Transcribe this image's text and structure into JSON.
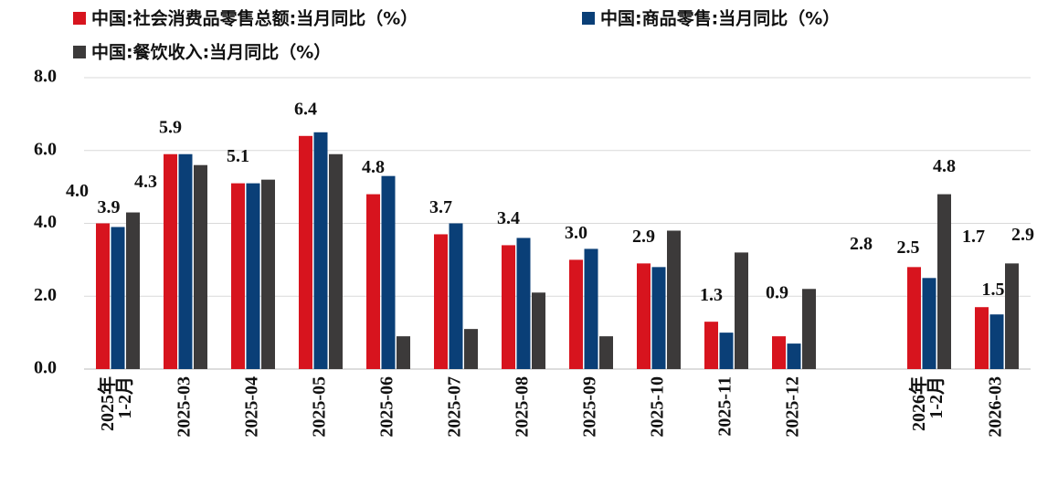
{
  "chart_data": {
    "type": "bar",
    "categories": [
      [
        "2025年",
        "1-2月"
      ],
      "2025-03",
      "2025-04",
      "2025-05",
      "2025-06",
      "2025-07",
      "2025-08",
      "2025-09",
      "2025-10",
      "2025-11",
      "2025-12",
      null,
      [
        "2026年",
        "1-2月"
      ],
      "2026-03"
    ],
    "series": [
      {
        "name": "中国:社会消费品零售总额:当月同比（%）",
        "color": "#d7141e",
        "values": [
          4.0,
          5.9,
          5.1,
          6.4,
          4.8,
          3.7,
          3.4,
          3.0,
          2.9,
          1.3,
          0.9,
          null,
          2.8,
          1.7
        ],
        "value_labels": [
          "4.0",
          "5.9",
          "5.1",
          "6.4",
          "4.8",
          "3.7",
          "3.4",
          "3.0",
          "2.9",
          "1.3",
          "0.9",
          null,
          "2.8",
          "1.7"
        ]
      },
      {
        "name": "中国:商品零售:当月同比（%）",
        "color": "#0a3f77",
        "values": [
          3.9,
          5.9,
          5.1,
          6.5,
          5.3,
          4.0,
          3.6,
          3.3,
          2.8,
          1.0,
          0.7,
          null,
          2.5,
          1.5
        ],
        "value_labels": [
          "3.9",
          null,
          null,
          null,
          null,
          null,
          null,
          null,
          null,
          null,
          null,
          null,
          "2.5",
          "1.5"
        ]
      },
      {
        "name": "中国:餐饮收入:当月同比（%）",
        "color": "#3c3a3a",
        "values": [
          4.3,
          5.6,
          5.2,
          5.9,
          0.9,
          1.1,
          2.1,
          0.9,
          3.8,
          3.2,
          2.2,
          null,
          4.8,
          2.9
        ],
        "value_labels": [
          "4.3",
          null,
          null,
          null,
          null,
          null,
          null,
          null,
          null,
          null,
          null,
          null,
          "4.8",
          "2.9"
        ]
      }
    ],
    "ylim": [
      0,
      8
    ],
    "yticks": [
      {
        "value": 0,
        "label": "0.0"
      },
      {
        "value": 2,
        "label": "2.0"
      },
      {
        "value": 4,
        "label": "4.0"
      },
      {
        "value": 6,
        "label": "6.0"
      },
      {
        "value": 8,
        "label": "8.0"
      }
    ],
    "grid": true
  }
}
